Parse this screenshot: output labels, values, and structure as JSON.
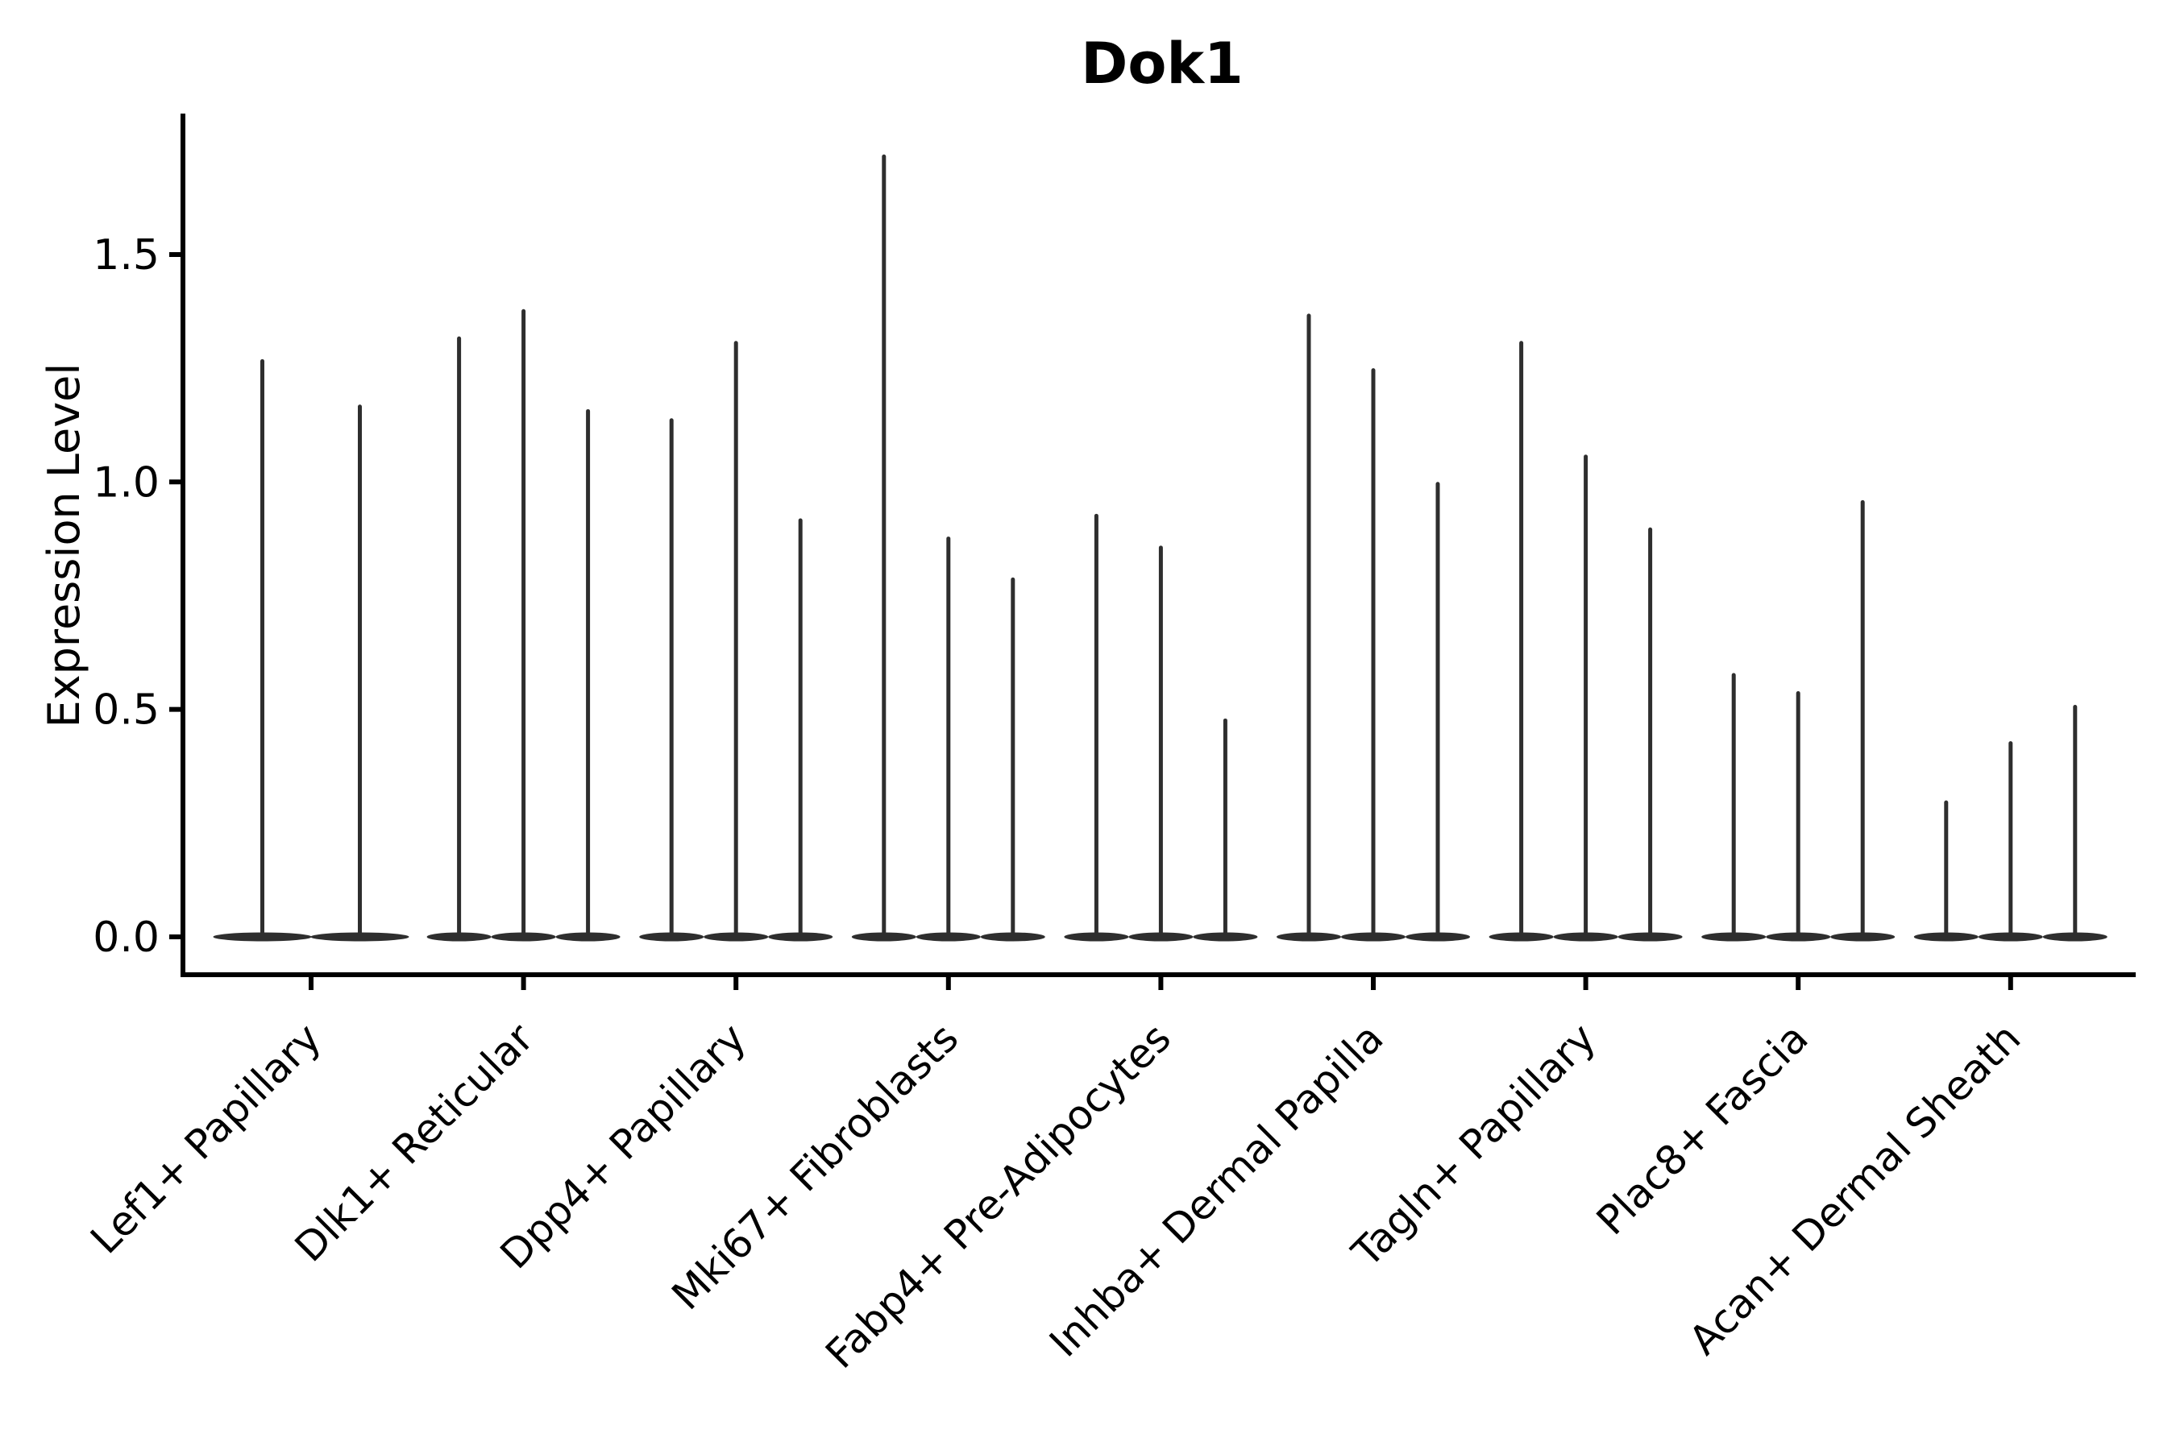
{
  "title": "Dok1",
  "colors": {
    "violin": "#2e2e2e",
    "axis": "#000000",
    "text": "#000000",
    "background": "#ffffff"
  },
  "chart_data": {
    "type": "violin",
    "title": "Dok1",
    "xlabel": "",
    "ylabel": "Expression Level",
    "ylim": [
      -0.08,
      1.81
    ],
    "grid": false,
    "legend": false,
    "yticks": [
      {
        "label": "0.0",
        "value": 0.0
      },
      {
        "label": "0.5",
        "value": 0.5
      },
      {
        "label": "1.0",
        "value": 1.0
      },
      {
        "label": "1.5",
        "value": 1.5
      }
    ],
    "categories": [
      "Lef1+ Papillary",
      "Dlk1+ Reticular",
      "Dpp4+ Papillary",
      "Mki67+ Fibroblasts",
      "Fabp4+ Pre-Adipocytes",
      "Inhba+ Dermal Papilla",
      "Tagln+ Papillary",
      "Plac8+ Fascia",
      "Acan+ Dermal Sheath"
    ],
    "violin_min_value": 0.0,
    "density_note": "each violin is a needle: mass concentrated at 0 with a thin tail up to its max",
    "groups": [
      {
        "category": "Lef1+ Papillary",
        "violin_max_values": [
          1.27,
          1.17
        ]
      },
      {
        "category": "Dlk1+ Reticular",
        "violin_max_values": [
          1.32,
          1.38,
          1.16
        ]
      },
      {
        "category": "Dpp4+ Papillary",
        "violin_max_values": [
          1.14,
          1.31,
          0.92
        ]
      },
      {
        "category": "Mki67+ Fibroblasts",
        "violin_max_values": [
          1.72,
          0.88,
          0.79
        ]
      },
      {
        "category": "Fabp4+ Pre-Adipocytes",
        "violin_max_values": [
          0.93,
          0.86,
          0.48
        ]
      },
      {
        "category": "Inhba+ Dermal Papilla",
        "violin_max_values": [
          1.37,
          1.25,
          1.0
        ]
      },
      {
        "category": "Tagln+ Papillary",
        "violin_max_values": [
          1.31,
          1.06,
          0.9
        ]
      },
      {
        "category": "Plac8+ Fascia",
        "violin_max_values": [
          0.58,
          0.54,
          0.96
        ]
      },
      {
        "category": "Acan+ Dermal Sheath",
        "violin_max_values": [
          0.3,
          0.43,
          0.51
        ]
      }
    ]
  }
}
